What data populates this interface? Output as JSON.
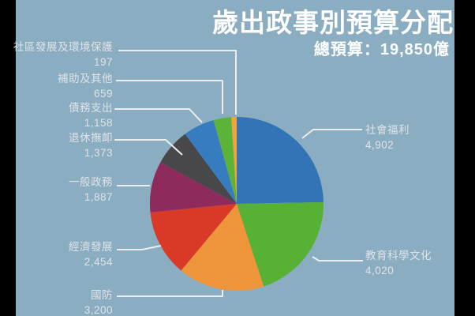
{
  "page": {
    "background": "#8badc2",
    "side_bar_color": "#000000"
  },
  "chart_data": {
    "type": "pie",
    "title": "歲出政事別預算分配",
    "subtitle": "總預算：19,850億",
    "total_value": 19850,
    "unit": "億",
    "direction": "clockwise",
    "start_angle": "12-oclock",
    "legend_position": "callout-labels",
    "slices": [
      {
        "id": "social-welfare",
        "label": "社會福利",
        "value": 4902,
        "value_text": "4,902",
        "color": "#3374b7"
      },
      {
        "id": "education-science-culture",
        "label": "教育科學文化",
        "value": 4020,
        "value_text": "4,020",
        "color": "#56b135"
      },
      {
        "id": "national-defense",
        "label": "國防",
        "value": 3200,
        "value_text": "3,200",
        "color": "#ee9439"
      },
      {
        "id": "economic-development",
        "label": "經濟發展",
        "value": 2454,
        "value_text": "2,454",
        "color": "#d93a27"
      },
      {
        "id": "general-government",
        "label": "一般政務",
        "value": 1887,
        "value_text": "1,887",
        "color": "#8e2a5c"
      },
      {
        "id": "pension",
        "label": "退休撫卹",
        "value": 1373,
        "value_text": "1,373",
        "color": "#48484a"
      },
      {
        "id": "debt-service",
        "label": "債務支出",
        "value": 1158,
        "value_text": "1,158",
        "color": "#377cc0"
      },
      {
        "id": "subsidies-other",
        "label": "補助及其他",
        "value": 659,
        "value_text": "659",
        "color": "#5cb339"
      },
      {
        "id": "community-environment",
        "label": "社區發展及環境保護",
        "value": 197,
        "value_text": "197",
        "color": "#f0a33e"
      }
    ]
  },
  "style": {
    "title_color": "#ffffff",
    "label_text_color": "#dee3e7",
    "leader_line_color": "#eaeef1"
  }
}
